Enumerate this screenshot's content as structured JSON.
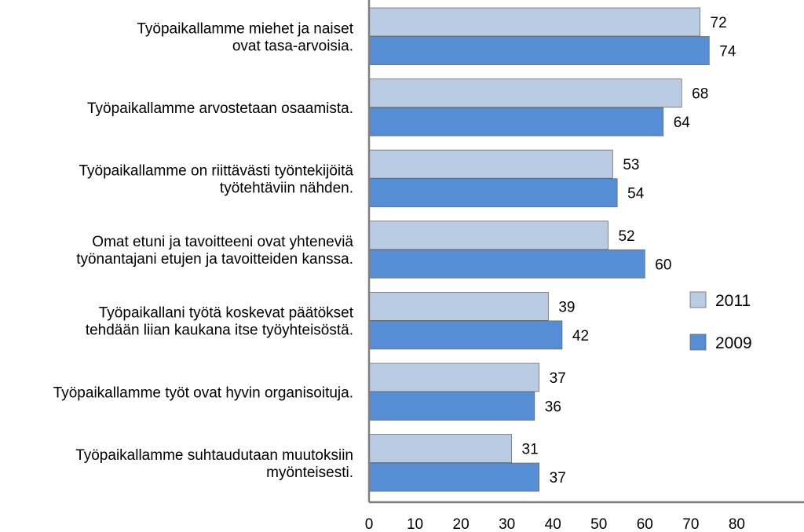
{
  "chart_data": {
    "type": "bar",
    "orientation": "horizontal",
    "categories": [
      [
        "Työpaikallamme miehet ja naiset",
        "ovat tasa-arvoisia."
      ],
      [
        "Työpaikallamme arvostetaan osaamista."
      ],
      [
        "Työpaikallamme on riittävästi työntekijöitä",
        "työtehtäviin nähden."
      ],
      [
        "Omat etuni ja tavoitteeni ovat yhteneviä",
        "työnantajani etujen ja tavoitteiden kanssa."
      ],
      [
        "Työpaikallani työtä koskevat päätökset",
        "tehdään liian kaukana itse työyhteisöstä."
      ],
      [
        "Työpaikallamme työt ovat hyvin organisoituja."
      ],
      [
        "Työpaikallamme suhtaudutaan muutoksiin",
        "myönteisesti."
      ]
    ],
    "series": [
      {
        "name": "2011",
        "color": "#b9cce4",
        "values": [
          72,
          68,
          53,
          52,
          39,
          37,
          31
        ]
      },
      {
        "name": "2009",
        "color": "#558ed5",
        "values": [
          74,
          64,
          54,
          60,
          42,
          36,
          37
        ]
      }
    ],
    "xlim": [
      0,
      80
    ],
    "xticks": [
      "0",
      "10",
      "20",
      "30",
      "40",
      "50",
      "60",
      "70",
      "80"
    ],
    "legend_position": "right",
    "grid": false,
    "title": "",
    "xlabel": "",
    "ylabel": ""
  }
}
